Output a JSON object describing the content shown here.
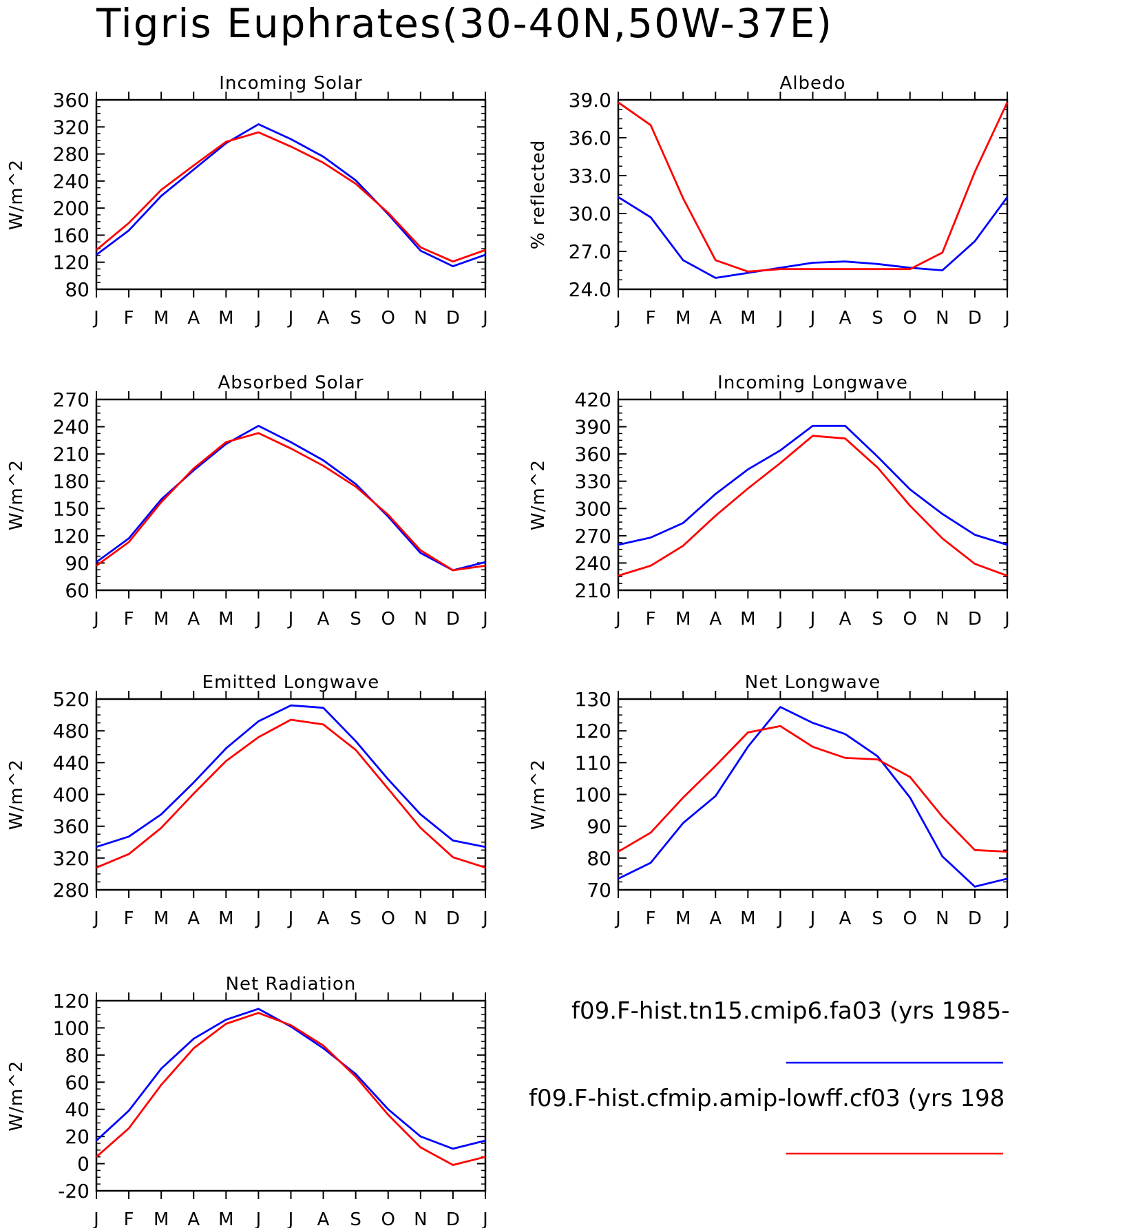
{
  "title": "Tigris Euphrates(30-40N,50W-37E)",
  "legend": [
    {
      "label": "f09.F-hist.tn15.cmip6.fa03 (yrs 1985-",
      "color": "#0000ff"
    },
    {
      "label": "f09.F-hist.cfmip.amip-lowff.cf03 (yrs 198",
      "color": "#ff0000"
    }
  ],
  "colors": {
    "blue": "#0000ff",
    "red": "#ff0000"
  },
  "chart_data": [
    {
      "type": "line",
      "title": "Incoming Solar",
      "ylabel": "W/m^2",
      "categories": [
        "J",
        "F",
        "M",
        "A",
        "M",
        "J",
        "J",
        "A",
        "S",
        "O",
        "N",
        "D",
        "J"
      ],
      "ylim": [
        80,
        360
      ],
      "yticks": [
        "80",
        "120",
        "160",
        "200",
        "240",
        "280",
        "320",
        "360"
      ],
      "series": [
        {
          "color": "#0000ff",
          "values": [
            131,
            167,
            218,
            257,
            296,
            324,
            302,
            276,
            241,
            191,
            137,
            114,
            131
          ]
        },
        {
          "color": "#ff0000",
          "values": [
            138,
            178,
            227,
            263,
            298,
            312,
            291,
            267,
            236,
            193,
            142,
            121,
            138
          ]
        }
      ]
    },
    {
      "type": "line",
      "title": "Albedo",
      "ylabel": "% reflected",
      "categories": [
        "J",
        "F",
        "M",
        "A",
        "M",
        "J",
        "J",
        "A",
        "S",
        "O",
        "N",
        "D",
        "J"
      ],
      "ylim": [
        24.0,
        39.0
      ],
      "yticks": [
        "24.0",
        "27.0",
        "30.0",
        "33.0",
        "36.0",
        "39.0"
      ],
      "series": [
        {
          "color": "#0000ff",
          "values": [
            31.3,
            29.7,
            26.3,
            24.9,
            25.3,
            25.7,
            26.1,
            26.2,
            26.0,
            25.7,
            25.5,
            27.8,
            31.3
          ]
        },
        {
          "color": "#ff0000",
          "values": [
            38.8,
            37.0,
            31.2,
            26.3,
            25.4,
            25.6,
            25.6,
            25.6,
            25.6,
            25.6,
            26.9,
            33.3,
            38.8
          ]
        }
      ]
    },
    {
      "type": "line",
      "title": "Absorbed Solar",
      "ylabel": "W/m^2",
      "categories": [
        "J",
        "F",
        "M",
        "A",
        "M",
        "J",
        "J",
        "A",
        "S",
        "O",
        "N",
        "D",
        "J"
      ],
      "ylim": [
        60,
        270
      ],
      "yticks": [
        "60",
        "90",
        "120",
        "150",
        "180",
        "210",
        "240",
        "270"
      ],
      "series": [
        {
          "color": "#0000ff",
          "values": [
            91,
            117,
            160,
            192,
            221,
            241,
            223,
            203,
            177,
            141,
            101,
            82,
            91
          ]
        },
        {
          "color": "#ff0000",
          "values": [
            87,
            113,
            157,
            194,
            223,
            233,
            216,
            197,
            174,
            143,
            104,
            82,
            87
          ]
        }
      ]
    },
    {
      "type": "line",
      "title": "Incoming Longwave",
      "ylabel": "W/m^2",
      "categories": [
        "J",
        "F",
        "M",
        "A",
        "M",
        "J",
        "J",
        "A",
        "S",
        "O",
        "N",
        "D",
        "J"
      ],
      "ylim": [
        210,
        420
      ],
      "yticks": [
        "210",
        "240",
        "270",
        "300",
        "330",
        "360",
        "390",
        "420"
      ],
      "series": [
        {
          "color": "#0000ff",
          "values": [
            260,
            268,
            284,
            316,
            343,
            364,
            391,
            391,
            357,
            321,
            294,
            271,
            260
          ]
        },
        {
          "color": "#ff0000",
          "values": [
            226,
            237,
            259,
            292,
            322,
            350,
            380,
            377,
            345,
            303,
            267,
            239,
            226
          ]
        }
      ]
    },
    {
      "type": "line",
      "title": "Emitted Longwave",
      "ylabel": "W/m^2",
      "categories": [
        "J",
        "F",
        "M",
        "A",
        "M",
        "J",
        "J",
        "A",
        "S",
        "O",
        "N",
        "D",
        "J"
      ],
      "ylim": [
        280,
        520
      ],
      "yticks": [
        "280",
        "320",
        "360",
        "400",
        "440",
        "480",
        "520"
      ],
      "series": [
        {
          "color": "#0000ff",
          "values": [
            334,
            347,
            375,
            415,
            458,
            492,
            512,
            509,
            467,
            419,
            375,
            342,
            334
          ]
        },
        {
          "color": "#ff0000",
          "values": [
            308,
            325,
            358,
            401,
            442,
            472,
            494,
            488,
            456,
            407,
            358,
            321,
            308
          ]
        }
      ]
    },
    {
      "type": "line",
      "title": "Net Longwave",
      "ylabel": "W/m^2",
      "categories": [
        "J",
        "F",
        "M",
        "A",
        "M",
        "J",
        "J",
        "A",
        "S",
        "O",
        "N",
        "D",
        "J"
      ],
      "ylim": [
        70,
        130
      ],
      "yticks": [
        "70",
        "80",
        "90",
        "100",
        "110",
        "120",
        "130"
      ],
      "series": [
        {
          "color": "#0000ff",
          "values": [
            73.5,
            78.5,
            91,
            99.5,
            115,
            127.5,
            122.5,
            119,
            112,
            99,
            80.5,
            71,
            73.5
          ]
        },
        {
          "color": "#ff0000",
          "values": [
            82,
            88,
            99,
            109,
            119.5,
            121.5,
            115,
            111.5,
            111,
            105.5,
            93,
            82.5,
            82
          ]
        }
      ]
    },
    {
      "type": "line",
      "title": "Net Radiation",
      "ylabel": "W/m^2",
      "categories": [
        "J",
        "F",
        "M",
        "A",
        "M",
        "J",
        "J",
        "A",
        "S",
        "O",
        "N",
        "D",
        "J"
      ],
      "ylim": [
        -20,
        120
      ],
      "yticks": [
        "-20",
        "0",
        "20",
        "40",
        "60",
        "80",
        "100",
        "120"
      ],
      "series": [
        {
          "color": "#0000ff",
          "values": [
            17,
            39,
            70,
            92,
            106,
            114,
            101,
            85,
            66,
            40,
            20,
            11,
            17
          ]
        },
        {
          "color": "#ff0000",
          "values": [
            5,
            26,
            58,
            85,
            103,
            111,
            102,
            87,
            64,
            36,
            12,
            -1,
            5
          ]
        }
      ]
    }
  ]
}
